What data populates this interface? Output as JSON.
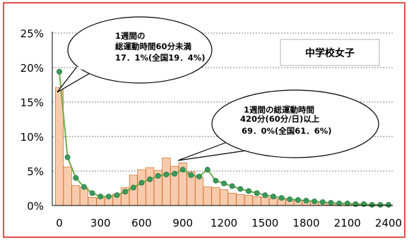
{
  "chart_data": {
    "type": "bar",
    "x_start": 0,
    "x_step": 60,
    "ylim": [
      0,
      25
    ],
    "y_ticks": [
      {
        "value": 0,
        "label": "0%"
      },
      {
        "value": 5,
        "label": "5%"
      },
      {
        "value": 10,
        "label": "10%"
      },
      {
        "value": 15,
        "label": "15%"
      },
      {
        "value": 20,
        "label": "20%"
      },
      {
        "value": 25,
        "label": "25%"
      }
    ],
    "x_ticks": [
      {
        "value": 0,
        "label": "0"
      },
      {
        "value": 300,
        "label": "300"
      },
      {
        "value": 600,
        "label": "600"
      },
      {
        "value": 900,
        "label": "900"
      },
      {
        "value": 1200,
        "label": "1200"
      },
      {
        "value": 1500,
        "label": "1500"
      },
      {
        "value": 1800,
        "label": "1800"
      },
      {
        "value": 2100,
        "label": "2100"
      },
      {
        "value": 2400,
        "label": "2400"
      }
    ],
    "bar_values": [
      17.1,
      5.6,
      2.9,
      2.6,
      1.2,
      1.1,
      1.3,
      1.7,
      2.6,
      4.4,
      5.2,
      5.5,
      5.1,
      6.9,
      5.7,
      6.2,
      4.9,
      4.1,
      2.7,
      2.6,
      2.3,
      1.8,
      1.6,
      1.5,
      1.3,
      1.2,
      1.0,
      0.9,
      0.8,
      0.7,
      0.6,
      0.6,
      0.5,
      0.4,
      0.4,
      0.3,
      0.3,
      0.2,
      0.2,
      0.1,
      0.1
    ],
    "line_values": [
      19.4,
      7.0,
      4.0,
      2.7,
      1.8,
      1.3,
      1.3,
      1.5,
      2.0,
      2.6,
      3.3,
      3.8,
      4.3,
      4.5,
      4.6,
      5.2,
      4.4,
      4.2,
      5.2,
      3.6,
      3.2,
      2.8,
      2.4,
      2.1,
      1.8,
      1.5,
      1.3,
      1.1,
      0.9,
      0.8,
      0.7,
      0.6,
      0.5,
      0.4,
      0.3,
      0.3,
      0.2,
      0.2,
      0.1,
      0.1,
      0.1
    ],
    "bar_color": "#f8cbad",
    "bar_stroke": "#c55a11",
    "line_color": "#70ad47",
    "marker_color": "#3a9a5a",
    "frame_color": "#e05050"
  },
  "legend_box": {
    "label": "中学校女子"
  },
  "callouts": [
    {
      "line1": "1週間の",
      "line2": "総運動時間60分未満",
      "line3": "17．1%(全国19．4%)"
    },
    {
      "line1": "1週間の総運動時間",
      "line2": "420分(60分/日)以上",
      "line3": "69．0%(全国61．6%)"
    }
  ]
}
